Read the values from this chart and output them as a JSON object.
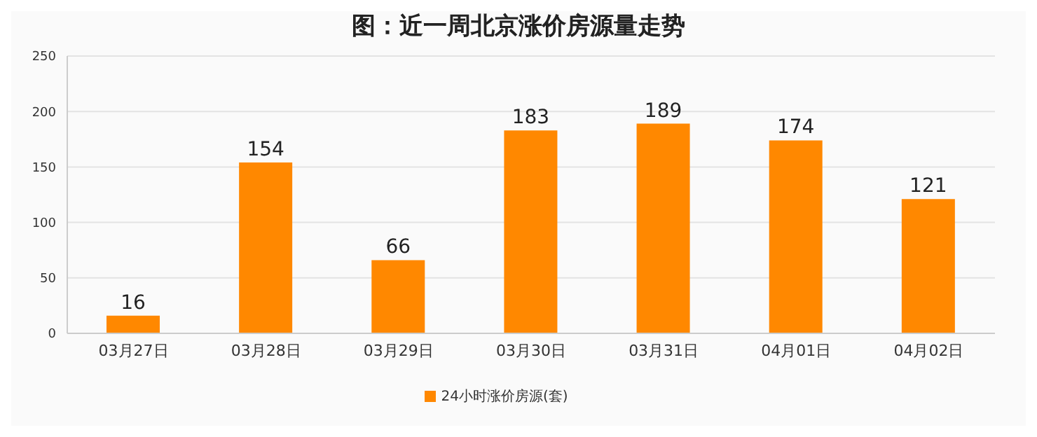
{
  "chart_data": {
    "type": "bar",
    "title": "图：近一周北京涨价房源量走势",
    "categories": [
      "03月27日",
      "03月28日",
      "03月29日",
      "03月30日",
      "03月31日",
      "04月01日",
      "04月02日"
    ],
    "series": [
      {
        "name": "24小时涨价房源(套)",
        "color": "#ff8800",
        "values": [
          16,
          154,
          66,
          183,
          189,
          174,
          121
        ]
      }
    ],
    "ylim": [
      0,
      250
    ],
    "yticks": [
      0,
      50,
      100,
      150,
      200,
      250
    ],
    "grid": "y",
    "legend": "bottom",
    "data_labels": true
  }
}
